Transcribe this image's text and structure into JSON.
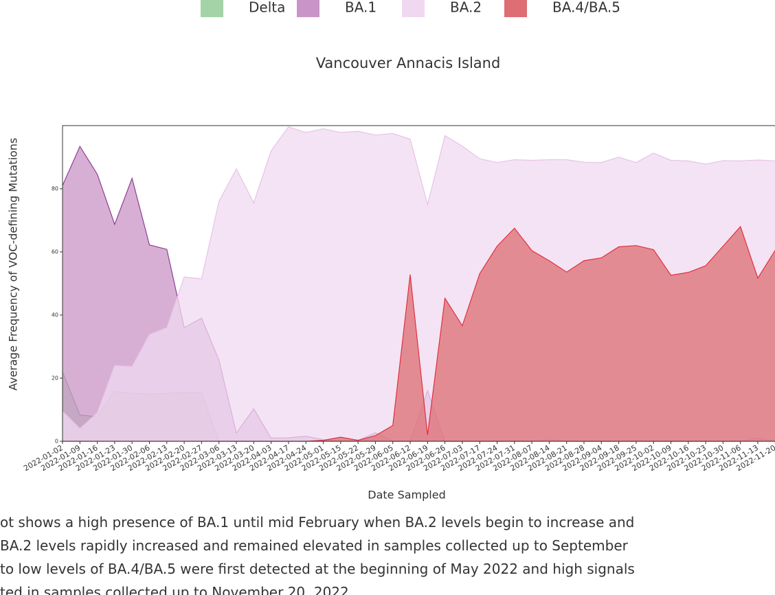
{
  "chart_data": {
    "type": "area",
    "title": "Vancouver Annacis Island",
    "x_label": "Date Sampled",
    "y_label": "Average Frequency of VOC-defining Mutations",
    "categories": [
      "2022-01-02",
      "2022-01-09",
      "2022-01-16",
      "2022-01-23",
      "2022-01-30",
      "2022-02-06",
      "2022-02-13",
      "2022-02-20",
      "2022-02-27",
      "2022-03-06",
      "2022-03-13",
      "2022-03-20",
      "2022-04-03",
      "2022-04-17",
      "2022-04-24",
      "2022-05-01",
      "2022-05-15",
      "2022-05-22",
      "2022-05-29",
      "2022-06-05",
      "2022-06-12",
      "2022-06-19",
      "2022-06-26",
      "2022-07-03",
      "2022-07-17",
      "2022-07-24",
      "2022-07-31",
      "2022-08-07",
      "2022-08-14",
      "2022-08-21",
      "2022-08-28",
      "2022-09-04",
      "2022-09-18",
      "2022-09-25",
      "2022-10-02",
      "2022-10-09",
      "2022-10-16",
      "2022-10-23",
      "2022-10-30",
      "2022-11-06",
      "2022-11-13",
      "2022-11-20"
    ],
    "series": [
      {
        "name": "Delta",
        "color": "#a3d3a6",
        "line_color": "#5d8a5d",
        "values": [
          22,
          8.3,
          7.8,
          15.8,
          15.2,
          15,
          15.2,
          15.4,
          15.4,
          0,
          0,
          0,
          0,
          0,
          0,
          0,
          0,
          0,
          0,
          0,
          0,
          0,
          0,
          0,
          0,
          0,
          0,
          0,
          0,
          0,
          0,
          0,
          0,
          0,
          0,
          0,
          0,
          0,
          0,
          0,
          0,
          0
        ]
      },
      {
        "name": "BA.1",
        "color": "#c994c7",
        "line_color": "#8e3d91",
        "values": [
          81,
          93.4,
          84.6,
          68.7,
          83.3,
          62.2,
          60.8,
          36,
          39,
          25.7,
          2.6,
          10.3,
          1,
          1.1,
          1.6,
          0.5,
          0,
          0.3,
          2.7,
          0,
          0,
          16,
          0,
          0,
          0,
          0,
          0,
          0,
          0.5,
          0,
          0,
          0,
          0,
          0,
          0,
          0,
          0,
          0,
          0,
          0,
          1,
          0
        ]
      },
      {
        "name": "BA.2",
        "color": "#f0d9f0",
        "line_color": "#e6c3e6",
        "values": [
          9.5,
          4,
          9,
          24,
          23.7,
          33.8,
          36,
          52,
          51.5,
          76,
          86.3,
          75.5,
          92,
          99.6,
          97.8,
          99,
          97.8,
          98.2,
          97,
          97.5,
          95.7,
          75,
          96.8,
          93.5,
          89.5,
          88.3,
          89.2,
          89,
          89.2,
          89.2,
          88.4,
          88.3,
          90,
          88.3,
          91.3,
          89,
          88.8,
          87.8,
          88.9,
          88.8,
          89.1,
          88.8
        ]
      },
      {
        "name": "BA.4/BA.5",
        "color": "#de6e73",
        "line_color": "#e0303c",
        "values": [
          0,
          0,
          0,
          0,
          0,
          0,
          0,
          0,
          0,
          0,
          0,
          0,
          0,
          0,
          0,
          0.3,
          1.3,
          0.3,
          1.8,
          5,
          52.8,
          2,
          45.3,
          36.6,
          53.1,
          61.8,
          67.5,
          60.4,
          57.2,
          53.6,
          57.2,
          58.1,
          61.6,
          62,
          60.7,
          52.6,
          53.5,
          55.6,
          61.8,
          68,
          51.7,
          60.5
        ]
      }
    ],
    "ylim": [
      0,
      100
    ],
    "yticks": [
      0,
      20,
      40,
      60,
      80
    ],
    "caption": [
      "ot shows a high presence of BA.1 until mid February when BA.2 levels begin to increase and",
      "BA.2 levels rapidly increased and remained elevated in samples collected up to September",
      "to low levels of BA.4/BA.5 were first detected at the beginning of May 2022 and high signals",
      "ted in samples collected up to November 20, 2022."
    ]
  }
}
